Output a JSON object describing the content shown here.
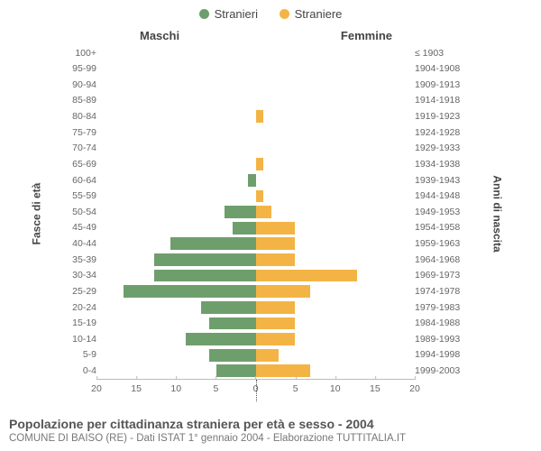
{
  "legend": {
    "male": {
      "label": "Stranieri",
      "color": "#6f9e6d"
    },
    "female": {
      "label": "Straniere",
      "color": "#f3b445"
    }
  },
  "headers": {
    "male": "Maschi",
    "female": "Femmine",
    "left_axis": "Fasce di età",
    "right_axis": "Anni di nascita"
  },
  "xaxis": {
    "max": 20,
    "ticks": [
      20,
      15,
      10,
      5,
      0,
      5,
      10,
      15,
      20
    ]
  },
  "rows": [
    {
      "age": "100+",
      "birth": "≤ 1903",
      "m": 0,
      "f": 0
    },
    {
      "age": "95-99",
      "birth": "1904-1908",
      "m": 0,
      "f": 0
    },
    {
      "age": "90-94",
      "birth": "1909-1913",
      "m": 0,
      "f": 0
    },
    {
      "age": "85-89",
      "birth": "1914-1918",
      "m": 0,
      "f": 0
    },
    {
      "age": "80-84",
      "birth": "1919-1923",
      "m": 0,
      "f": 1
    },
    {
      "age": "75-79",
      "birth": "1924-1928",
      "m": 0,
      "f": 0
    },
    {
      "age": "70-74",
      "birth": "1929-1933",
      "m": 0,
      "f": 0
    },
    {
      "age": "65-69",
      "birth": "1934-1938",
      "m": 0,
      "f": 1
    },
    {
      "age": "60-64",
      "birth": "1939-1943",
      "m": 1,
      "f": 0
    },
    {
      "age": "55-59",
      "birth": "1944-1948",
      "m": 0,
      "f": 1
    },
    {
      "age": "50-54",
      "birth": "1949-1953",
      "m": 4,
      "f": 2
    },
    {
      "age": "45-49",
      "birth": "1954-1958",
      "m": 3,
      "f": 5
    },
    {
      "age": "40-44",
      "birth": "1959-1963",
      "m": 11,
      "f": 5
    },
    {
      "age": "35-39",
      "birth": "1964-1968",
      "m": 13,
      "f": 5
    },
    {
      "age": "30-34",
      "birth": "1969-1973",
      "m": 13,
      "f": 13
    },
    {
      "age": "25-29",
      "birth": "1974-1978",
      "m": 17,
      "f": 7
    },
    {
      "age": "20-24",
      "birth": "1979-1983",
      "m": 7,
      "f": 5
    },
    {
      "age": "15-19",
      "birth": "1984-1988",
      "m": 6,
      "f": 5
    },
    {
      "age": "10-14",
      "birth": "1989-1993",
      "m": 9,
      "f": 5
    },
    {
      "age": "5-9",
      "birth": "1994-1998",
      "m": 6,
      "f": 3
    },
    {
      "age": "0-4",
      "birth": "1999-2003",
      "m": 5,
      "f": 7
    }
  ],
  "footer": {
    "title": "Popolazione per cittadinanza straniera per età e sesso - 2004",
    "subtitle": "COMUNE DI BAISO (RE) - Dati ISTAT 1° gennaio 2004 - Elaborazione TUTTITALIA.IT"
  },
  "style": {
    "age_fontsize": 10.5,
    "background": "#ffffff",
    "grid_color": "#bbbbbb",
    "text_color": "#666666"
  }
}
